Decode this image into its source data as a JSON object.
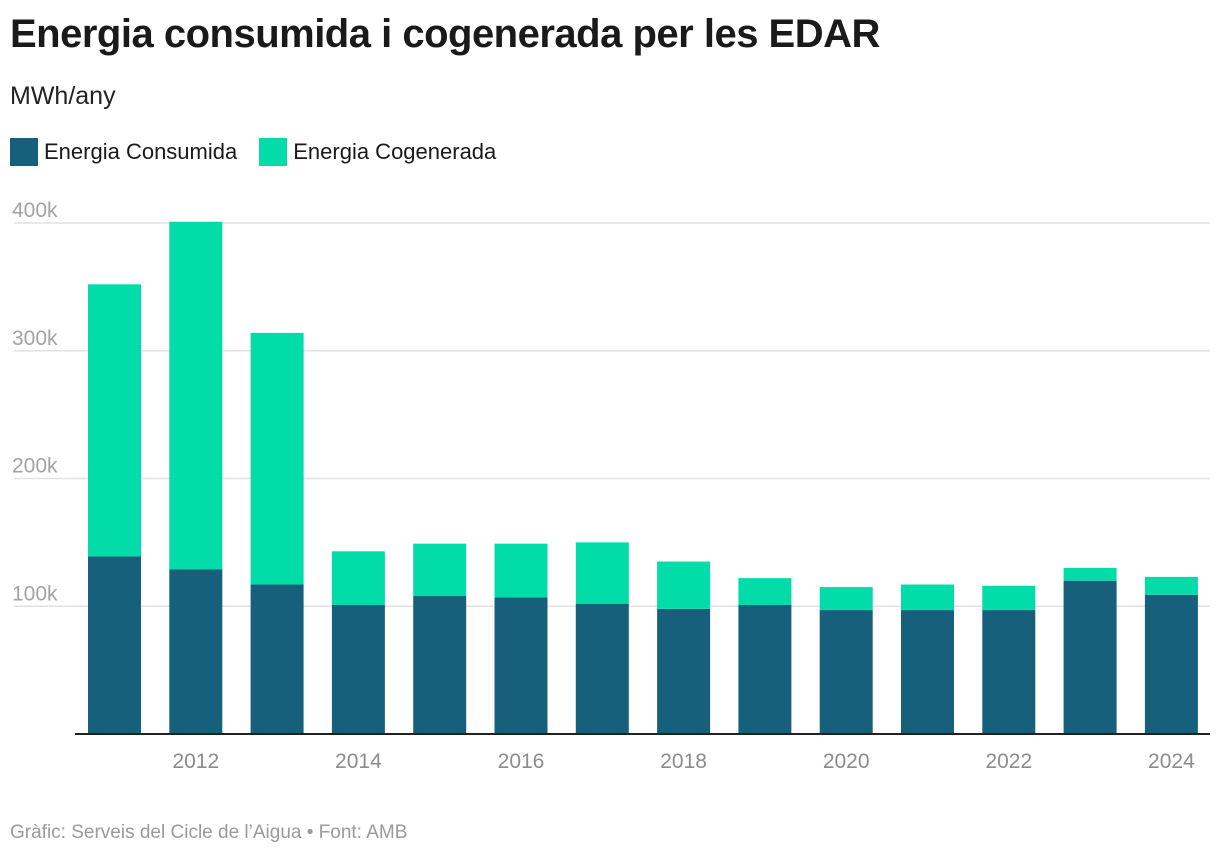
{
  "chart_data": {
    "type": "bar",
    "stacked": true,
    "title": "Energia consumida i cogenerada per les EDAR",
    "subtitle": "MWh/any",
    "categories": [
      "2011",
      "2012",
      "2013",
      "2014",
      "2015",
      "2016",
      "2017",
      "2018",
      "2019",
      "2020",
      "2021",
      "2022",
      "2023",
      "2024"
    ],
    "x_tick_labels": [
      "2012",
      "2014",
      "2016",
      "2018",
      "2020",
      "2022",
      "2024"
    ],
    "series": [
      {
        "name": "Energia Consumida",
        "color": "#17607c",
        "values": [
          139000,
          129000,
          117000,
          101000,
          108000,
          107000,
          102000,
          98000,
          101000,
          97000,
          97000,
          97000,
          120000,
          109000
        ]
      },
      {
        "name": "Energia Cogenerada",
        "color": "#02dca8",
        "values": [
          213000,
          272000,
          197000,
          42000,
          41000,
          42000,
          48000,
          37000,
          21000,
          18000,
          20000,
          19000,
          10000,
          14000
        ]
      }
    ],
    "ylim": [
      0,
      400000
    ],
    "y_ticks": [
      100000,
      200000,
      300000,
      400000
    ],
    "y_tick_labels": [
      "100k",
      "200k",
      "300k",
      "400k"
    ],
    "grid": true,
    "legend_position": "top-left",
    "xlabel": "",
    "ylabel": ""
  },
  "footer": "Gràfic: Serveis del Cicle de l’Aigua • Font: AMB"
}
